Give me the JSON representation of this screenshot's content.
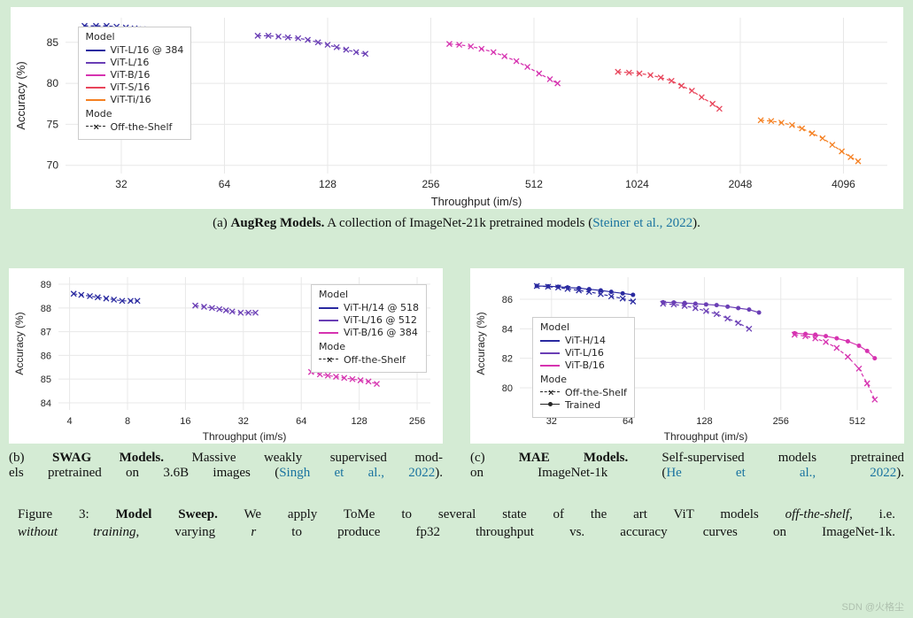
{
  "background_color": "#d4ebd4",
  "panel_background": "#ffffff",
  "grid_color": "#e8e8e8",
  "axis_color": "#262626",
  "citation_color": "#1a73a0",
  "chart_a": {
    "type": "line-scatter",
    "xlabel": "Throughput (im/s)",
    "ylabel": "Accuracy (%)",
    "xscale": "log2",
    "xlim": [
      22,
      5500
    ],
    "ylim": [
      69,
      88
    ],
    "xticks": [
      32,
      64,
      128,
      256,
      512,
      1024,
      2048,
      4096
    ],
    "yticks": [
      70,
      75,
      80,
      85
    ],
    "label_fontsize": 13,
    "tick_fontsize": 12,
    "marker": "x",
    "linestyle": "dashed",
    "linewidth": 1.2,
    "legend_title_model": "Model",
    "legend_title_mode": "Mode",
    "legend_mode_label": "Off-the-Shelf",
    "series": [
      {
        "label": "ViT-L/16 @ 384",
        "color": "#2a2aa0",
        "points": [
          [
            25,
            87.0
          ],
          [
            27,
            87.0
          ],
          [
            29,
            87.0
          ],
          [
            31,
            86.9
          ],
          [
            33,
            86.8
          ],
          [
            35,
            86.7
          ],
          [
            37,
            86.6
          ],
          [
            39,
            86.5
          ],
          [
            41,
            86.4
          ],
          [
            43,
            86.3
          ],
          [
            45,
            86.2
          ],
          [
            47,
            86.2
          ],
          [
            49,
            86.2
          ],
          [
            50,
            86.2
          ]
        ]
      },
      {
        "label": "ViT-L/16",
        "color": "#6a3eb5",
        "points": [
          [
            80,
            85.8
          ],
          [
            86,
            85.8
          ],
          [
            92,
            85.7
          ],
          [
            98,
            85.6
          ],
          [
            105,
            85.5
          ],
          [
            112,
            85.3
          ],
          [
            120,
            85.0
          ],
          [
            128,
            84.7
          ],
          [
            136,
            84.4
          ],
          [
            145,
            84.1
          ],
          [
            155,
            83.8
          ],
          [
            165,
            83.6
          ]
        ]
      },
      {
        "label": "ViT-B/16",
        "color": "#d633b0",
        "points": [
          [
            290,
            84.8
          ],
          [
            310,
            84.7
          ],
          [
            335,
            84.5
          ],
          [
            360,
            84.2
          ],
          [
            390,
            83.8
          ],
          [
            420,
            83.3
          ],
          [
            455,
            82.7
          ],
          [
            490,
            82.0
          ],
          [
            530,
            81.2
          ],
          [
            570,
            80.5
          ],
          [
            600,
            80.0
          ]
        ]
      },
      {
        "label": "ViT-S/16",
        "color": "#e8455b",
        "points": [
          [
            900,
            81.4
          ],
          [
            970,
            81.3
          ],
          [
            1040,
            81.2
          ],
          [
            1120,
            81.0
          ],
          [
            1200,
            80.7
          ],
          [
            1290,
            80.3
          ],
          [
            1380,
            79.7
          ],
          [
            1480,
            79.1
          ],
          [
            1580,
            78.3
          ],
          [
            1700,
            77.5
          ],
          [
            1780,
            76.9
          ]
        ]
      },
      {
        "label": "ViT-Ti/16",
        "color": "#f58022",
        "points": [
          [
            2350,
            75.5
          ],
          [
            2520,
            75.4
          ],
          [
            2700,
            75.2
          ],
          [
            2900,
            74.9
          ],
          [
            3100,
            74.5
          ],
          [
            3320,
            73.9
          ],
          [
            3560,
            73.3
          ],
          [
            3800,
            72.5
          ],
          [
            4050,
            71.7
          ],
          [
            4300,
            71.0
          ],
          [
            4520,
            70.5
          ]
        ]
      }
    ],
    "caption_label": "(a)",
    "caption_bold": "AugReg Models.",
    "caption_rest": " A collection of ImageNet-21k pretrained models (",
    "caption_cite": "Steiner et al., 2022",
    "caption_end": ")."
  },
  "chart_b": {
    "type": "line-scatter",
    "xlabel": "Throughput (im/s)",
    "ylabel": "Accuracy (%)",
    "xscale": "log2",
    "xlim": [
      3.5,
      300
    ],
    "ylim": [
      83.7,
      89.3
    ],
    "xticks": [
      4,
      8,
      16,
      32,
      64,
      128,
      256
    ],
    "yticks": [
      84,
      85,
      86,
      87,
      88,
      89
    ],
    "label_fontsize": 12,
    "tick_fontsize": 11,
    "marker": "x",
    "linestyle": "dashed",
    "linewidth": 1.1,
    "legend_title_model": "Model",
    "legend_title_mode": "Mode",
    "legend_mode_label": "Off-the-Shelf",
    "series": [
      {
        "label": "ViT-H/14 @ 518",
        "color": "#2a2aa0",
        "points": [
          [
            4.2,
            88.6
          ],
          [
            4.6,
            88.55
          ],
          [
            5.1,
            88.5
          ],
          [
            5.6,
            88.45
          ],
          [
            6.2,
            88.4
          ],
          [
            6.8,
            88.35
          ],
          [
            7.5,
            88.3
          ],
          [
            8.3,
            88.3
          ],
          [
            9.0,
            88.3
          ]
        ]
      },
      {
        "label": "ViT-L/16 @ 512",
        "color": "#6a3eb5",
        "points": [
          [
            18,
            88.1
          ],
          [
            20,
            88.05
          ],
          [
            22,
            88.0
          ],
          [
            24,
            87.95
          ],
          [
            26,
            87.9
          ],
          [
            28,
            87.85
          ],
          [
            31,
            87.8
          ],
          [
            34,
            87.8
          ],
          [
            37,
            87.8
          ]
        ]
      },
      {
        "label": "ViT-B/16 @ 384",
        "color": "#d633b0",
        "points": [
          [
            72,
            85.3
          ],
          [
            80,
            85.2
          ],
          [
            88,
            85.15
          ],
          [
            97,
            85.1
          ],
          [
            107,
            85.05
          ],
          [
            118,
            85.0
          ],
          [
            130,
            84.95
          ],
          [
            143,
            84.9
          ],
          [
            158,
            84.8
          ]
        ]
      }
    ],
    "caption_label": "(b)",
    "caption_bold": "SWAG Models.",
    "caption_rest1": " Massive weakly supervised mod-",
    "caption_rest2": "els pretrained on 3.6B images (",
    "caption_cite": "Singh et al., 2022",
    "caption_end": ")."
  },
  "chart_c": {
    "type": "line-scatter",
    "xlabel": "Throughput (im/s)",
    "ylabel": "Accuracy (%)",
    "xscale": "log2",
    "xlim": [
      24,
      700
    ],
    "ylim": [
      78.5,
      87.5
    ],
    "xticks": [
      32,
      64,
      128,
      256,
      512
    ],
    "yticks": [
      80,
      82,
      84,
      86
    ],
    "label_fontsize": 12,
    "tick_fontsize": 11,
    "marker_offshelf": "x",
    "marker_trained": "o",
    "linestyle_offshelf": "dashed",
    "linestyle_trained": "solid",
    "linewidth": 1.2,
    "legend_title_model": "Model",
    "legend_title_mode": "Mode",
    "legend_mode_labels": [
      "Off-the-Shelf",
      "Trained"
    ],
    "series": [
      {
        "label": "ViT-H/14",
        "color": "#2a2aa0",
        "offshelf": [
          [
            28,
            86.9
          ],
          [
            31,
            86.85
          ],
          [
            34,
            86.8
          ],
          [
            37,
            86.7
          ],
          [
            41,
            86.6
          ],
          [
            45,
            86.5
          ],
          [
            50,
            86.35
          ],
          [
            55,
            86.2
          ],
          [
            61,
            86.05
          ],
          [
            67,
            85.85
          ]
        ],
        "trained": [
          [
            28,
            86.9
          ],
          [
            31,
            86.88
          ],
          [
            34,
            86.85
          ],
          [
            37,
            86.8
          ],
          [
            41,
            86.75
          ],
          [
            45,
            86.68
          ],
          [
            50,
            86.6
          ],
          [
            55,
            86.5
          ],
          [
            61,
            86.4
          ],
          [
            67,
            86.3
          ]
        ]
      },
      {
        "label": "ViT-L/16",
        "color": "#6a3eb5",
        "offshelf": [
          [
            88,
            85.7
          ],
          [
            97,
            85.65
          ],
          [
            107,
            85.55
          ],
          [
            118,
            85.4
          ],
          [
            130,
            85.2
          ],
          [
            143,
            85.0
          ],
          [
            158,
            84.7
          ],
          [
            174,
            84.4
          ],
          [
            192,
            84.0
          ]
        ],
        "trained": [
          [
            88,
            85.8
          ],
          [
            97,
            85.78
          ],
          [
            107,
            85.75
          ],
          [
            118,
            85.7
          ],
          [
            130,
            85.65
          ],
          [
            143,
            85.6
          ],
          [
            158,
            85.5
          ],
          [
            174,
            85.4
          ],
          [
            192,
            85.3
          ],
          [
            210,
            85.1
          ]
        ]
      },
      {
        "label": "ViT-B/16",
        "color": "#d633b0",
        "offshelf": [
          [
            290,
            83.6
          ],
          [
            320,
            83.5
          ],
          [
            350,
            83.35
          ],
          [
            385,
            83.1
          ],
          [
            425,
            82.7
          ],
          [
            470,
            82.1
          ],
          [
            520,
            81.3
          ],
          [
            560,
            80.3
          ],
          [
            600,
            79.2
          ]
        ],
        "trained": [
          [
            290,
            83.7
          ],
          [
            320,
            83.65
          ],
          [
            350,
            83.6
          ],
          [
            385,
            83.5
          ],
          [
            425,
            83.35
          ],
          [
            470,
            83.15
          ],
          [
            520,
            82.85
          ],
          [
            560,
            82.5
          ],
          [
            600,
            82.0
          ]
        ]
      }
    ],
    "caption_label": "(c)",
    "caption_bold": "MAE Models.",
    "caption_rest1": " Self-supervised models pretrained",
    "caption_rest2": "on ImageNet-1k (",
    "caption_cite": "He et al., 2022",
    "caption_end": ")."
  },
  "figure_caption": {
    "label": "Figure 3:",
    "bold": "Model Sweep.",
    "line1_rest": "  We apply ToMe to several state of the art ViT models ",
    "italic1": "off-the-shelf",
    "line1_end": ", i.e.",
    "line2_start": "",
    "italic2": "without training",
    "line2_rest": ", varying ",
    "italic3": "r",
    "line2_end": " to produce fp32 throughput vs. accuracy curves on ImageNet-1k."
  },
  "watermark": "SDN @火格尘"
}
